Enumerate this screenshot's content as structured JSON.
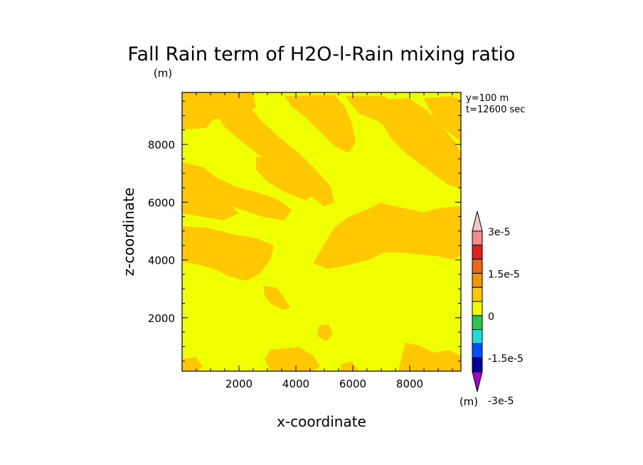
{
  "chart_data": {
    "type": "heatmap",
    "title": "Fall Rain term of H2O-l-Rain mixing ratio",
    "units_top": "(m)",
    "units_colorbar": "(m)",
    "xlabel": "x-coordinate",
    "ylabel": "z-coordinate",
    "xlim": [
      0,
      9800
    ],
    "ylim": [
      150,
      9800
    ],
    "x_ticks": [
      "2000",
      "4000",
      "6000",
      "8000"
    ],
    "y_ticks": [
      "2000",
      "4000",
      "6000",
      "8000"
    ],
    "info": [
      "y=100  m",
      "t=12600 sec"
    ],
    "colorbar": {
      "labels": [
        "3e-5",
        "1.5e-5",
        "0",
        "-1.5e-5",
        "-3e-5"
      ],
      "colors": [
        "#f5c8c8",
        "#f08c8c",
        "#e61e1e",
        "#f06414",
        "#f09600",
        "#ffc800",
        "#f0ff00",
        "#28c850",
        "#1edcdc",
        "#0050ff",
        "#0000a0",
        "#a000c8"
      ]
    },
    "fill_colors": {
      "background": "#f0ff00",
      "positive": "#ffc800"
    }
  }
}
